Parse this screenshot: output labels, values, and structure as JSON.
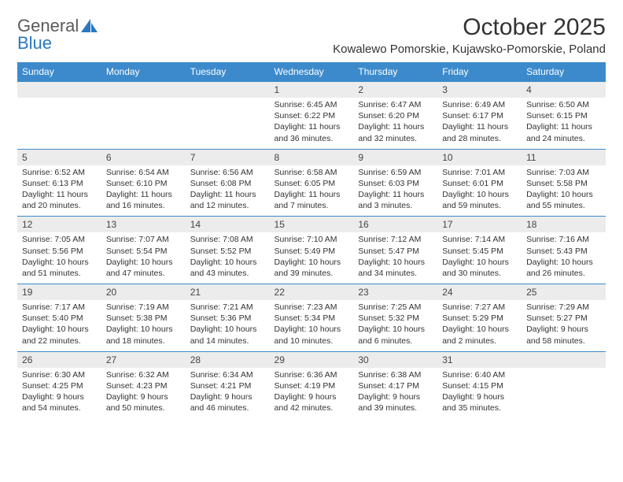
{
  "logo": {
    "part1": "General",
    "part2": "Blue"
  },
  "title": "October 2025",
  "location": "Kowalewo Pomorskie, Kujawsko-Pomorskie, Poland",
  "colors": {
    "header_bg": "#3c8acb",
    "header_fg": "#ffffff",
    "daynum_bg": "#ececec",
    "border": "#3c8acb",
    "logo_gray": "#5a5a5a",
    "logo_blue": "#2a78c0"
  },
  "weekdays": [
    "Sunday",
    "Monday",
    "Tuesday",
    "Wednesday",
    "Thursday",
    "Friday",
    "Saturday"
  ],
  "weeks": [
    [
      null,
      null,
      null,
      {
        "n": "1",
        "sr": "6:45 AM",
        "ss": "6:22 PM",
        "dl": "11 hours and 36 minutes."
      },
      {
        "n": "2",
        "sr": "6:47 AM",
        "ss": "6:20 PM",
        "dl": "11 hours and 32 minutes."
      },
      {
        "n": "3",
        "sr": "6:49 AM",
        "ss": "6:17 PM",
        "dl": "11 hours and 28 minutes."
      },
      {
        "n": "4",
        "sr": "6:50 AM",
        "ss": "6:15 PM",
        "dl": "11 hours and 24 minutes."
      }
    ],
    [
      {
        "n": "5",
        "sr": "6:52 AM",
        "ss": "6:13 PM",
        "dl": "11 hours and 20 minutes."
      },
      {
        "n": "6",
        "sr": "6:54 AM",
        "ss": "6:10 PM",
        "dl": "11 hours and 16 minutes."
      },
      {
        "n": "7",
        "sr": "6:56 AM",
        "ss": "6:08 PM",
        "dl": "11 hours and 12 minutes."
      },
      {
        "n": "8",
        "sr": "6:58 AM",
        "ss": "6:05 PM",
        "dl": "11 hours and 7 minutes."
      },
      {
        "n": "9",
        "sr": "6:59 AM",
        "ss": "6:03 PM",
        "dl": "11 hours and 3 minutes."
      },
      {
        "n": "10",
        "sr": "7:01 AM",
        "ss": "6:01 PM",
        "dl": "10 hours and 59 minutes."
      },
      {
        "n": "11",
        "sr": "7:03 AM",
        "ss": "5:58 PM",
        "dl": "10 hours and 55 minutes."
      }
    ],
    [
      {
        "n": "12",
        "sr": "7:05 AM",
        "ss": "5:56 PM",
        "dl": "10 hours and 51 minutes."
      },
      {
        "n": "13",
        "sr": "7:07 AM",
        "ss": "5:54 PM",
        "dl": "10 hours and 47 minutes."
      },
      {
        "n": "14",
        "sr": "7:08 AM",
        "ss": "5:52 PM",
        "dl": "10 hours and 43 minutes."
      },
      {
        "n": "15",
        "sr": "7:10 AM",
        "ss": "5:49 PM",
        "dl": "10 hours and 39 minutes."
      },
      {
        "n": "16",
        "sr": "7:12 AM",
        "ss": "5:47 PM",
        "dl": "10 hours and 34 minutes."
      },
      {
        "n": "17",
        "sr": "7:14 AM",
        "ss": "5:45 PM",
        "dl": "10 hours and 30 minutes."
      },
      {
        "n": "18",
        "sr": "7:16 AM",
        "ss": "5:43 PM",
        "dl": "10 hours and 26 minutes."
      }
    ],
    [
      {
        "n": "19",
        "sr": "7:17 AM",
        "ss": "5:40 PM",
        "dl": "10 hours and 22 minutes."
      },
      {
        "n": "20",
        "sr": "7:19 AM",
        "ss": "5:38 PM",
        "dl": "10 hours and 18 minutes."
      },
      {
        "n": "21",
        "sr": "7:21 AM",
        "ss": "5:36 PM",
        "dl": "10 hours and 14 minutes."
      },
      {
        "n": "22",
        "sr": "7:23 AM",
        "ss": "5:34 PM",
        "dl": "10 hours and 10 minutes."
      },
      {
        "n": "23",
        "sr": "7:25 AM",
        "ss": "5:32 PM",
        "dl": "10 hours and 6 minutes."
      },
      {
        "n": "24",
        "sr": "7:27 AM",
        "ss": "5:29 PM",
        "dl": "10 hours and 2 minutes."
      },
      {
        "n": "25",
        "sr": "7:29 AM",
        "ss": "5:27 PM",
        "dl": "9 hours and 58 minutes."
      }
    ],
    [
      {
        "n": "26",
        "sr": "6:30 AM",
        "ss": "4:25 PM",
        "dl": "9 hours and 54 minutes."
      },
      {
        "n": "27",
        "sr": "6:32 AM",
        "ss": "4:23 PM",
        "dl": "9 hours and 50 minutes."
      },
      {
        "n": "28",
        "sr": "6:34 AM",
        "ss": "4:21 PM",
        "dl": "9 hours and 46 minutes."
      },
      {
        "n": "29",
        "sr": "6:36 AM",
        "ss": "4:19 PM",
        "dl": "9 hours and 42 minutes."
      },
      {
        "n": "30",
        "sr": "6:38 AM",
        "ss": "4:17 PM",
        "dl": "9 hours and 39 minutes."
      },
      {
        "n": "31",
        "sr": "6:40 AM",
        "ss": "4:15 PM",
        "dl": "9 hours and 35 minutes."
      },
      null
    ]
  ],
  "labels": {
    "sunrise": "Sunrise:",
    "sunset": "Sunset:",
    "daylight": "Daylight:"
  }
}
